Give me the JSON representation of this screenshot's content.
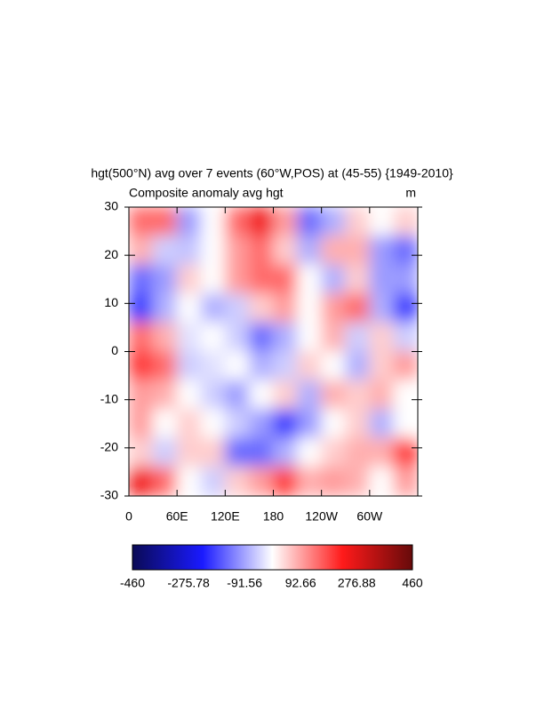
{
  "chart_data": {
    "type": "heatmap",
    "title": "hgt(500°N) avg over 7 events (60°W,POS) at (45-55) {1949-2010}",
    "subtitle_left": "Composite anomaly avg hgt",
    "subtitle_right": "m",
    "x": [
      15,
      45,
      75,
      105,
      135,
      165,
      195,
      225,
      255,
      285,
      315,
      345
    ],
    "y": [
      27,
      21,
      15,
      9,
      3,
      -3,
      -9,
      -15,
      -21,
      -27
    ],
    "z": [
      [
        150,
        150,
        -100,
        0,
        150,
        250,
        100,
        -150,
        -80,
        50,
        0,
        50
      ],
      [
        80,
        -50,
        -60,
        0,
        100,
        150,
        50,
        -80,
        80,
        80,
        -100,
        -150
      ],
      [
        -150,
        -100,
        50,
        0,
        100,
        150,
        150,
        0,
        -80,
        50,
        -100,
        -100
      ],
      [
        -200,
        -80,
        0,
        -80,
        -50,
        50,
        100,
        0,
        100,
        150,
        -80,
        -200
      ],
      [
        150,
        80,
        -30,
        0,
        -50,
        -150,
        -80,
        0,
        80,
        -50,
        50,
        -50
      ],
      [
        200,
        150,
        -50,
        -30,
        0,
        -80,
        -50,
        50,
        0,
        -80,
        50,
        100
      ],
      [
        100,
        80,
        0,
        -50,
        -100,
        0,
        50,
        -80,
        80,
        50,
        80,
        0
      ],
      [
        100,
        0,
        50,
        0,
        -50,
        -100,
        -200,
        -100,
        0,
        50,
        -80,
        0
      ],
      [
        50,
        -50,
        50,
        50,
        -150,
        -150,
        -80,
        0,
        50,
        80,
        80,
        200
      ],
      [
        250,
        150,
        0,
        -50,
        50,
        100,
        200,
        80,
        100,
        80,
        0,
        100
      ]
    ],
    "xlim": [
      0,
      360
    ],
    "xticks": [
      0,
      {
        "value": 60,
        "label": "60E"
      },
      {
        "value": 120,
        "label": "120E"
      },
      180,
      {
        "value": 240,
        "label": "120W"
      },
      {
        "value": 300,
        "label": "60W"
      }
    ],
    "ylim": [
      -30,
      30
    ],
    "yticks": [
      -30,
      -20,
      -10,
      0,
      10,
      20,
      30
    ],
    "colorbar": {
      "lim": [
        -460,
        460
      ],
      "ticks": [
        -460,
        -275.78,
        -91.56,
        92.66,
        276.88,
        460
      ],
      "colors": [
        "#0a0a55",
        "#1a1aff",
        "#ffffff",
        "#ff1a1a",
        "#660a0a"
      ]
    }
  }
}
